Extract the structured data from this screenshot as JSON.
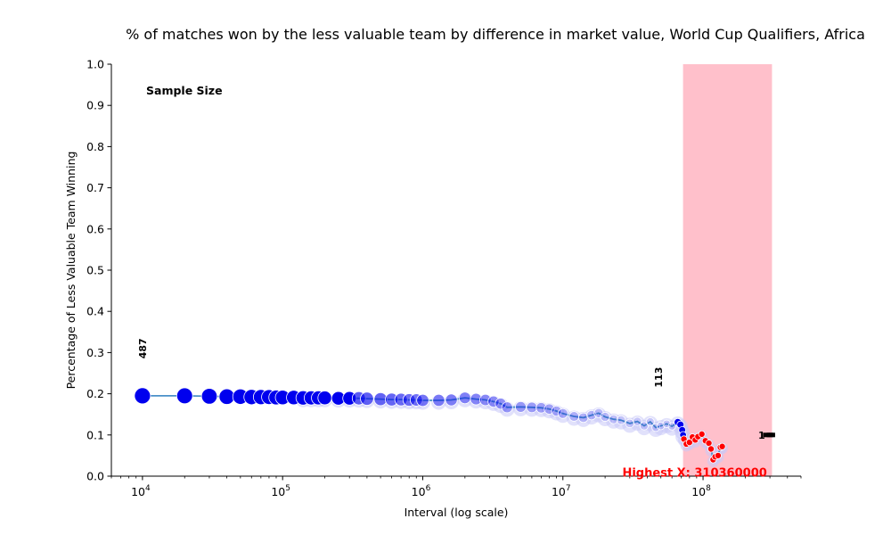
{
  "chart_data": {
    "type": "scatter",
    "title": "% of matches won by the less valuable team by difference in market value, World Cup Qualifiers, Africa",
    "xlabel": "Interval (log scale)",
    "ylabel": "Percentage of Less Valuable Team Winning",
    "xscale": "log",
    "xlim": [
      6000,
      500000000
    ],
    "ylim": [
      0,
      1.0
    ],
    "x_ticks": [
      {
        "value": 10000,
        "base": "10",
        "exp": "4"
      },
      {
        "value": 100000,
        "base": "10",
        "exp": "5"
      },
      {
        "value": 1000000,
        "base": "10",
        "exp": "6"
      },
      {
        "value": 10000000,
        "base": "10",
        "exp": "7"
      },
      {
        "value": 100000000,
        "base": "10",
        "exp": "8"
      }
    ],
    "y_ticks": [
      "0.0",
      "0.1",
      "0.2",
      "0.3",
      "0.4",
      "0.5",
      "0.6",
      "0.7",
      "0.8",
      "0.9",
      "1.0"
    ],
    "highlight_region": {
      "x_start": 72000000,
      "x_end": 310360000,
      "color": "#ffc0cb"
    },
    "sample_size_header": "Sample Size",
    "sample_labels": [
      {
        "text": "487",
        "x": 10000,
        "y": 0.31
      },
      {
        "text": "113",
        "x": 48000000,
        "y": 0.24
      },
      {
        "text": "1",
        "x": 282000000,
        "y": 0.1
      }
    ],
    "highest_x_label": {
      "text": "Highest X: 310360000",
      "x": 72000000,
      "y": 0.0,
      "color": "#ff0000"
    },
    "line_color": "#4a90c8",
    "band_color": "#c8c8f8",
    "marker_color": "#0000ee",
    "highlight_marker_color": "#ff0000",
    "series": [
      {
        "name": "win_rate",
        "points": [
          [
            10000,
            0.195
          ],
          [
            20000,
            0.195
          ],
          [
            30000,
            0.194
          ],
          [
            40000,
            0.193
          ],
          [
            50000,
            0.193
          ],
          [
            60000,
            0.192
          ],
          [
            70000,
            0.192
          ],
          [
            80000,
            0.192
          ],
          [
            90000,
            0.191
          ],
          [
            100000,
            0.191
          ],
          [
            120000,
            0.191
          ],
          [
            140000,
            0.19
          ],
          [
            160000,
            0.19
          ],
          [
            180000,
            0.19
          ],
          [
            200000,
            0.19
          ],
          [
            250000,
            0.189
          ],
          [
            300000,
            0.189
          ],
          [
            350000,
            0.189
          ],
          [
            400000,
            0.188
          ],
          [
            500000,
            0.187
          ],
          [
            600000,
            0.186
          ],
          [
            700000,
            0.186
          ],
          [
            800000,
            0.185
          ],
          [
            900000,
            0.185
          ],
          [
            1000000,
            0.184
          ],
          [
            1300000,
            0.184
          ],
          [
            1600000,
            0.185
          ],
          [
            2000000,
            0.19
          ],
          [
            2400000,
            0.187
          ],
          [
            2800000,
            0.185
          ],
          [
            3200000,
            0.181
          ],
          [
            3600000,
            0.176
          ],
          [
            4000000,
            0.167
          ],
          [
            5000000,
            0.168
          ],
          [
            6000000,
            0.167
          ],
          [
            7000000,
            0.166
          ],
          [
            8000000,
            0.163
          ],
          [
            9000000,
            0.158
          ],
          [
            10000000,
            0.152
          ],
          [
            12000000,
            0.145
          ],
          [
            14000000,
            0.142
          ],
          [
            16000000,
            0.148
          ],
          [
            18000000,
            0.153
          ],
          [
            20000000,
            0.144
          ],
          [
            23000000,
            0.138
          ],
          [
            26000000,
            0.136
          ],
          [
            30000000,
            0.128
          ],
          [
            34000000,
            0.133
          ],
          [
            38000000,
            0.122
          ],
          [
            42000000,
            0.132
          ],
          [
            46000000,
            0.118
          ],
          [
            50000000,
            0.122
          ],
          [
            55000000,
            0.127
          ],
          [
            60000000,
            0.121
          ],
          [
            66000000,
            0.131
          ],
          [
            69000000,
            0.125
          ],
          [
            71000000,
            0.112
          ],
          [
            72000000,
            0.1
          ]
        ],
        "highlight_points": [
          [
            73000000,
            0.09
          ],
          [
            76000000,
            0.078
          ],
          [
            80000000,
            0.082
          ],
          [
            84000000,
            0.095
          ],
          [
            88000000,
            0.088
          ],
          [
            92000000,
            0.096
          ],
          [
            98000000,
            0.102
          ],
          [
            104000000,
            0.086
          ],
          [
            110000000,
            0.08
          ],
          [
            114000000,
            0.066
          ],
          [
            118000000,
            0.04
          ],
          [
            122000000,
            0.047
          ],
          [
            128000000,
            0.05
          ],
          [
            133000000,
            0.07
          ],
          [
            137000000,
            0.072
          ]
        ],
        "tail_points": [
          [
            282000000,
            0.1
          ],
          [
            300000000,
            0.1
          ],
          [
            310360000,
            0.1
          ]
        ]
      }
    ]
  }
}
